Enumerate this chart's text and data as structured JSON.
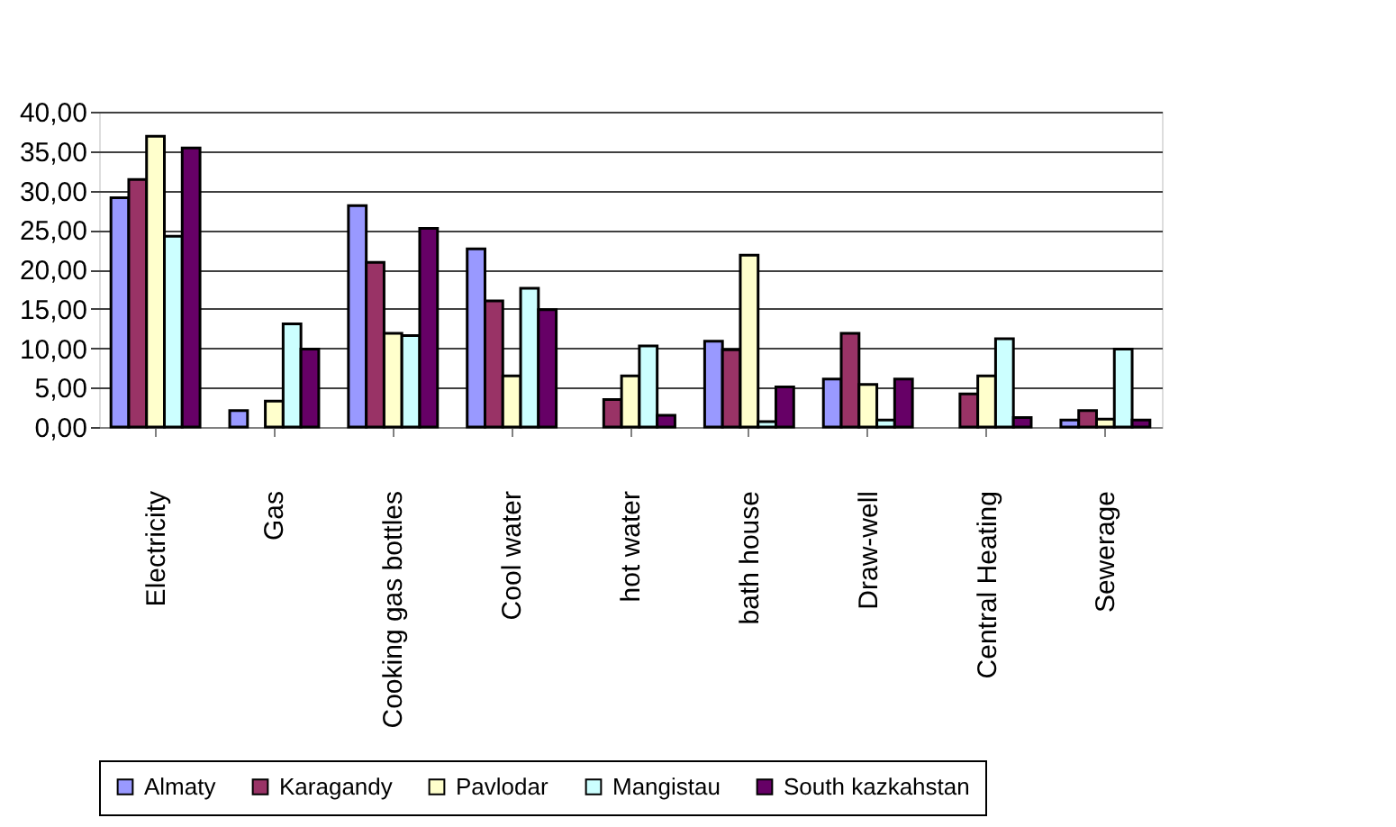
{
  "chart_data": {
    "type": "bar",
    "categories": [
      "Electricity",
      "Gas",
      "Cooking gas bottles",
      "Cool water",
      "hot water",
      "bath house",
      "Draw-well",
      "Central Heating",
      "Sewerage"
    ],
    "series": [
      {
        "name": "Almaty",
        "color": "#9999ff",
        "values": [
          29.1,
          2.1,
          28.1,
          22.6,
          null,
          10.9,
          6.1,
          null,
          0.9
        ]
      },
      {
        "name": "Karagandy",
        "color": "#993366",
        "values": [
          31.4,
          null,
          20.9,
          16.0,
          3.5,
          9.8,
          11.9,
          4.2,
          2.1
        ]
      },
      {
        "name": "Pavlodar",
        "color": "#ffffcc",
        "values": [
          36.9,
          3.3,
          11.9,
          6.5,
          6.5,
          21.8,
          5.4,
          6.5,
          1.0
        ]
      },
      {
        "name": "Mangistau",
        "color": "#ccffff",
        "values": [
          24.2,
          13.1,
          11.6,
          17.6,
          10.3,
          0.7,
          0.9,
          11.2,
          9.9
        ]
      },
      {
        "name": "South kazkahstan",
        "color": "#660066",
        "values": [
          35.4,
          9.9,
          25.2,
          14.9,
          1.5,
          5.1,
          6.1,
          1.2,
          0.9
        ]
      }
    ],
    "ylim": [
      0,
      40
    ],
    "yticks": [
      {
        "value": 0,
        "label": "0,00"
      },
      {
        "value": 5,
        "label": "5,00"
      },
      {
        "value": 10,
        "label": "10,00"
      },
      {
        "value": 15,
        "label": "15,00"
      },
      {
        "value": 20,
        "label": "20,00"
      },
      {
        "value": 25,
        "label": "25,00"
      },
      {
        "value": 30,
        "label": "30,00"
      },
      {
        "value": 35,
        "label": "35,00"
      },
      {
        "value": 40,
        "label": "40,00"
      }
    ],
    "grid": "y",
    "legend": "bottom"
  }
}
